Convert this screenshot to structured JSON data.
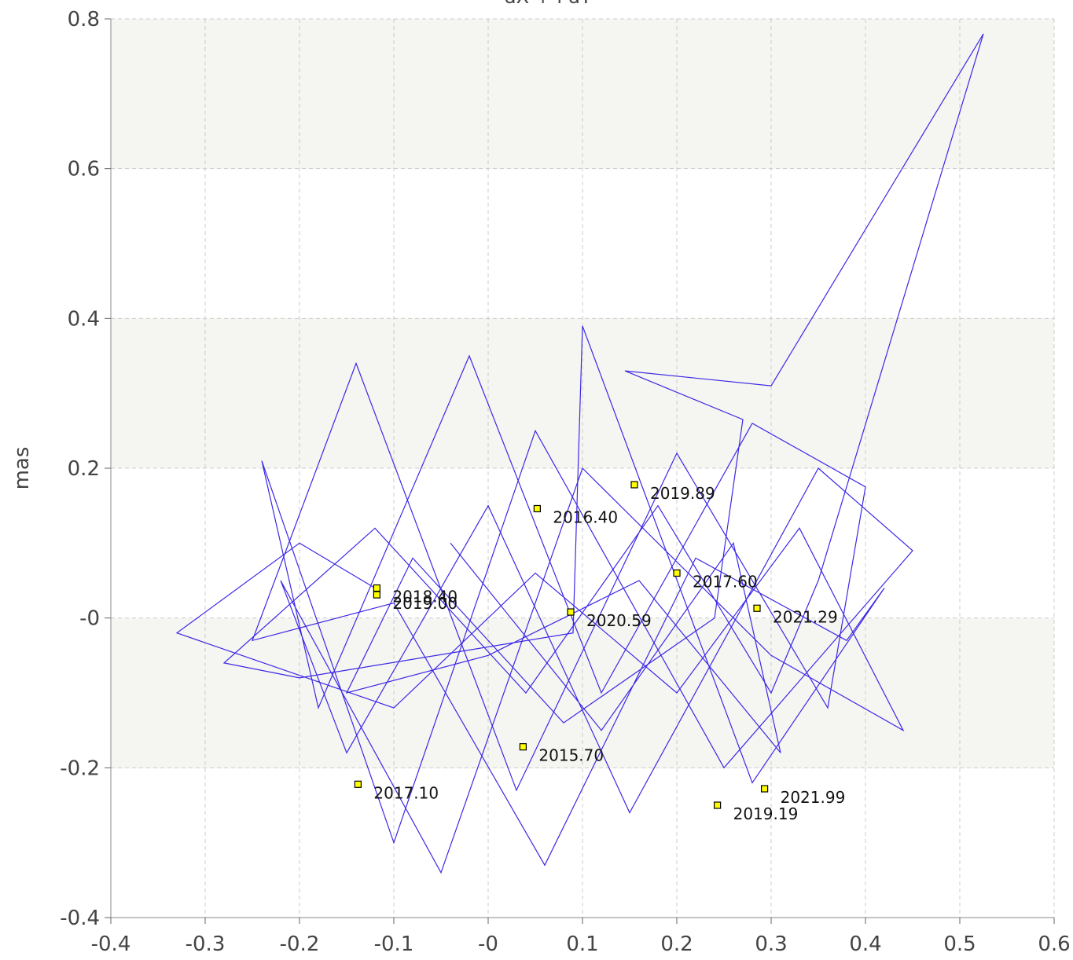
{
  "chart_data": {
    "type": "line",
    "title": "dX + i dY",
    "ylabel": "mas",
    "color": "#3c28e6",
    "x": [
      -0.12,
      -0.2,
      -0.33,
      -0.1,
      0.05,
      0.2,
      0.33,
      0.44,
      0.3,
      0.1,
      -0.05,
      -0.22,
      -0.15,
      0.0,
      0.15,
      0.35,
      0.45,
      0.25,
      0.05,
      -0.1,
      -0.24,
      -0.18,
      -0.02,
      0.12,
      0.28,
      0.4,
      0.36,
      0.2,
      0.03,
      -0.14,
      -0.25,
      -0.1,
      0.06,
      0.22,
      0.38,
      0.42,
      0.28,
      0.1,
      0.09,
      -0.2,
      -0.28,
      -0.12,
      0.04,
      0.18,
      0.3,
      0.35,
      0.525,
      0.3,
      0.145,
      0.27,
      0.24,
      0.08,
      -0.08,
      -0.15,
      0.0,
      0.16,
      0.31,
      0.26,
      0.12,
      -0.04
    ],
    "values": [
      0.04,
      0.1,
      -0.02,
      -0.12,
      0.06,
      -0.1,
      0.12,
      -0.15,
      -0.05,
      0.2,
      -0.34,
      0.05,
      -0.18,
      0.15,
      -0.26,
      0.2,
      0.09,
      -0.2,
      0.25,
      -0.3,
      0.21,
      -0.12,
      0.35,
      -0.1,
      0.26,
      0.175,
      -0.12,
      0.22,
      -0.23,
      0.34,
      -0.03,
      0.02,
      -0.33,
      0.08,
      -0.03,
      0.04,
      -0.22,
      0.39,
      -0.02,
      -0.08,
      -0.06,
      0.12,
      -0.1,
      0.15,
      -0.1,
      0.05,
      0.78,
      0.31,
      0.33,
      0.265,
      0.0,
      -0.14,
      0.08,
      -0.1,
      -0.05,
      0.05,
      -0.18,
      0.1,
      -0.15,
      0.1
    ],
    "annotations": [
      {
        "text": "2019.89",
        "x": 0.155,
        "y": 0.178
      },
      {
        "text": "2016.40",
        "x": 0.052,
        "y": 0.146
      },
      {
        "text": "2017.60",
        "x": 0.2,
        "y": 0.06
      },
      {
        "text": "2021.29",
        "x": 0.285,
        "y": 0.013
      },
      {
        "text": "2020.59",
        "x": 0.0875,
        "y": 0.008
      },
      {
        "text": "2018.40",
        "x": -0.118,
        "y": 0.04
      },
      {
        "text": "2019.00",
        "x": -0.118,
        "y": 0.031
      },
      {
        "text": "2015.70",
        "x": 0.037,
        "y": -0.172
      },
      {
        "text": "2017.10",
        "x": -0.138,
        "y": -0.222
      },
      {
        "text": "2021.99",
        "x": 0.293,
        "y": -0.228
      },
      {
        "text": "2019.19",
        "x": 0.243,
        "y": -0.25
      }
    ],
    "marker_color": "#ffff00",
    "xlim": [
      -0.4,
      0.6
    ],
    "ylim": [
      -0.4,
      0.8
    ],
    "xticks": [
      -0.4,
      -0.3,
      -0.2,
      -0.1,
      {
        "value": 0,
        "label": "-0"
      },
      0.1,
      0.2,
      0.3,
      0.4,
      0.5,
      0.6
    ],
    "yticks": [
      -0.4,
      -0.2,
      {
        "value": 0,
        "label": "-0"
      },
      0.2,
      0.4,
      0.6,
      0.8
    ],
    "grid": true
  }
}
